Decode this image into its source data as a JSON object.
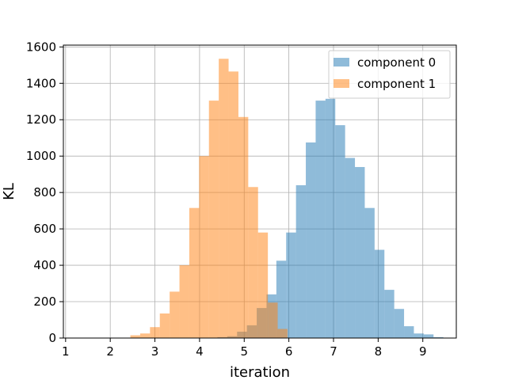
{
  "chart_data": {
    "type": "histogram",
    "xlabel": "iteration",
    "ylabel": "KL",
    "xlim": [
      0.95,
      9.75
    ],
    "ylim": [
      0,
      1610
    ],
    "xticks": [
      1,
      2,
      3,
      4,
      5,
      6,
      7,
      8,
      9
    ],
    "yticks": [
      0,
      200,
      400,
      600,
      800,
      1000,
      1200,
      1400,
      1600
    ],
    "grid": true,
    "legend_position": "top-right",
    "bin_width": 0.22,
    "series": [
      {
        "name": "component 0",
        "color": "#1f77b4",
        "alpha": 0.5,
        "bin_start": 4.4,
        "values": [
          5,
          10,
          35,
          70,
          165,
          240,
          425,
          580,
          840,
          1075,
          1305,
          1315,
          1170,
          990,
          940,
          715,
          485,
          265,
          160,
          65,
          25,
          20,
          5
        ]
      },
      {
        "name": "component 1",
        "color": "#ff7f0e",
        "alpha": 0.5,
        "bin_start": 2.45,
        "values": [
          15,
          25,
          60,
          135,
          255,
          400,
          715,
          1000,
          1305,
          1535,
          1465,
          1215,
          830,
          580,
          195,
          50
        ]
      }
    ],
    "xtick_labels": [
      "1",
      "2",
      "3",
      "4",
      "5",
      "6",
      "7",
      "8",
      "9"
    ],
    "ytick_labels": [
      "0",
      "200",
      "400",
      "600",
      "800",
      "1000",
      "1200",
      "1400",
      "1600"
    ]
  }
}
